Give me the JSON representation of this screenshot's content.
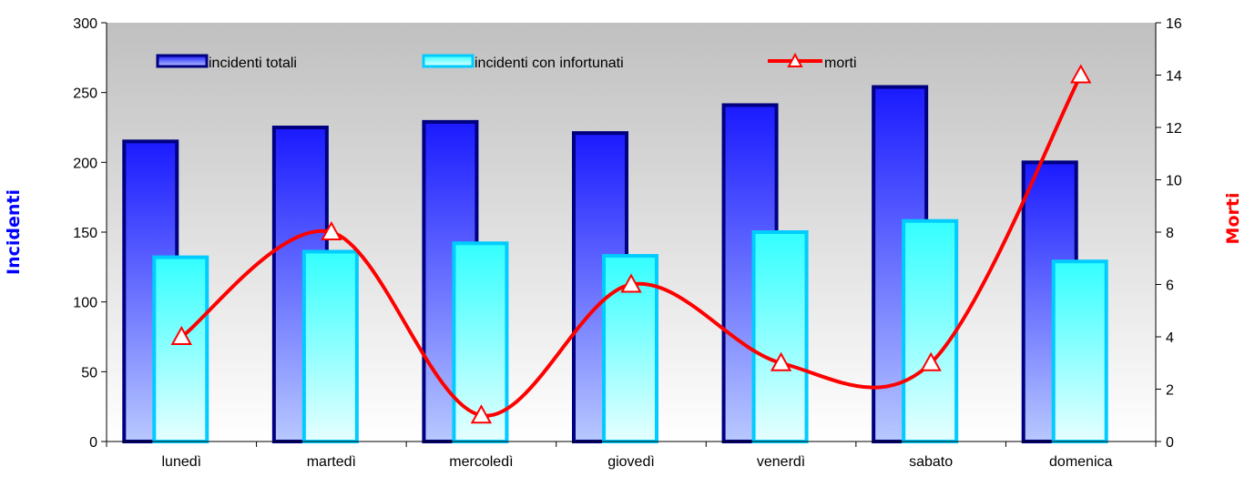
{
  "chart_data": {
    "type": "bar",
    "categories": [
      "lunedì",
      "martedì",
      "mercoledì",
      "giovedì",
      "venerdì",
      "sabato",
      "domenica"
    ],
    "series": [
      {
        "name": "incidenti totali",
        "type": "bar",
        "axis": "left",
        "values": [
          215,
          225,
          229,
          221,
          241,
          254,
          200
        ]
      },
      {
        "name": "incidenti con infortunati",
        "type": "bar",
        "axis": "left",
        "values": [
          132,
          136,
          142,
          133,
          150,
          158,
          129
        ]
      },
      {
        "name": "morti",
        "type": "line",
        "axis": "right",
        "marker": "triangle",
        "values": [
          4,
          8,
          1,
          6,
          3,
          3,
          14
        ]
      }
    ],
    "ylabel": "Incidenti",
    "y2label": "Morti",
    "ylim": [
      0,
      300
    ],
    "y2lim": [
      0,
      16
    ],
    "yticks": [
      "0",
      "50",
      "100",
      "150",
      "200",
      "250",
      "300"
    ],
    "y2ticks": [
      "0",
      "2",
      "4",
      "6",
      "8",
      "10",
      "12",
      "14",
      "16"
    ],
    "legend_position": "top",
    "grid": false,
    "colors": {
      "bar_total_top": "#1a1aff",
      "bar_total_bottom": "#b8c8ff",
      "bar_total_border": "#000080",
      "bar_injured_top": "#33ffff",
      "bar_injured_bottom": "#e6ffff",
      "bar_injured_border": "#00ccff",
      "line_morti": "#ff0000",
      "ylabel_color": "#0000ff",
      "y2label_color": "#ff0000",
      "plot_bg_top": "#c0c0c0",
      "plot_bg_bottom": "#ffffff"
    }
  }
}
